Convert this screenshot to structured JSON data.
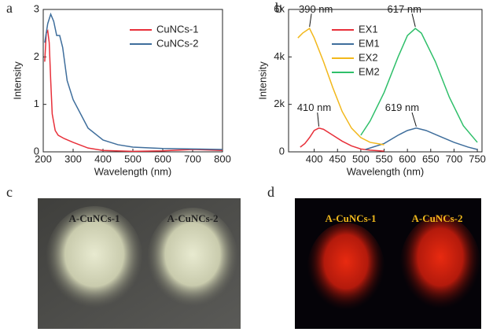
{
  "chart_data": [
    {
      "type": "line",
      "panel": "a",
      "x_label": "Wavelength (nm)",
      "y_label": "Intensity",
      "xlim": [
        200,
        800
      ],
      "xticks": [
        200,
        300,
        400,
        500,
        600,
        700,
        800
      ],
      "ylim": [
        0,
        3
      ],
      "yticks": [
        0,
        1,
        2,
        3
      ],
      "legend": "top-right",
      "series": [
        {
          "name": "CuNCs-1",
          "color": "#e8303a",
          "x": [
            205,
            210,
            215,
            220,
            225,
            230,
            240,
            250,
            270,
            300,
            350,
            400,
            500,
            600,
            700,
            800
          ],
          "values": [
            1.9,
            2.5,
            2.55,
            2.3,
            1.5,
            0.8,
            0.45,
            0.35,
            0.28,
            0.2,
            0.08,
            0.03,
            0.01,
            0.02,
            0.05,
            0.03
          ]
        },
        {
          "name": "CuNCs-2",
          "color": "#3f6e9c",
          "x": [
            205,
            215,
            225,
            235,
            245,
            255,
            265,
            280,
            300,
            350,
            400,
            450,
            500,
            600,
            700,
            800
          ],
          "values": [
            2.3,
            2.7,
            2.9,
            2.75,
            2.45,
            2.45,
            2.2,
            1.5,
            1.1,
            0.5,
            0.25,
            0.15,
            0.1,
            0.07,
            0.06,
            0.05
          ]
        }
      ]
    },
    {
      "type": "line",
      "panel": "b",
      "x_label": "Wavelength (nm)",
      "y_label": "Intensity",
      "xlim": [
        345,
        760
      ],
      "xticks": [
        400,
        450,
        500,
        550,
        600,
        650,
        700,
        750
      ],
      "ylim": [
        0,
        6000
      ],
      "yticks": [
        0,
        {
          "value": 2000,
          "label": "2k"
        },
        {
          "value": 4000,
          "label": "4k"
        },
        {
          "value": 6000,
          "label": "6k"
        }
      ],
      "legend": "top-left",
      "series": [
        {
          "name": "EX1",
          "color": "#e8303a",
          "x": [
            370,
            380,
            390,
            400,
            410,
            420,
            440,
            460,
            480,
            500,
            520,
            550
          ],
          "values": [
            200,
            350,
            600,
            900,
            1000,
            950,
            700,
            450,
            250,
            120,
            70,
            30
          ]
        },
        {
          "name": "EM1",
          "color": "#3f6e9c",
          "x": [
            510,
            550,
            580,
            600,
            619,
            640,
            670,
            700,
            730,
            750
          ],
          "values": [
            100,
            350,
            700,
            900,
            1000,
            900,
            650,
            400,
            200,
            100
          ]
        },
        {
          "name": "EX2",
          "color": "#f2b81c",
          "x": [
            365,
            375,
            390,
            400,
            420,
            440,
            460,
            480,
            500,
            520,
            550
          ],
          "values": [
            4800,
            5000,
            5200,
            4800,
            3800,
            2700,
            1700,
            1000,
            600,
            400,
            300
          ]
        },
        {
          "name": "EM2",
          "color": "#2fbf6a",
          "x": [
            500,
            520,
            550,
            580,
            600,
            617,
            630,
            660,
            690,
            720,
            750
          ],
          "values": [
            700,
            1300,
            2500,
            4000,
            4900,
            5200,
            5000,
            3800,
            2300,
            1100,
            400
          ]
        }
      ],
      "annotations": [
        {
          "text": "390 nm",
          "x": 390,
          "y": 5200
        },
        {
          "text": "617 nm",
          "x": 617,
          "y": 5200
        },
        {
          "text": "410 nm",
          "x": 410,
          "y": 1000
        },
        {
          "text": "619 nm",
          "x": 619,
          "y": 1000
        }
      ]
    }
  ],
  "photos": [
    {
      "panel": "c",
      "labels": [
        "A-CuNCs-1",
        "A-CuNCs-2"
      ]
    },
    {
      "panel": "d",
      "labels": [
        "A-CuNCs-1",
        "A-CuNCs-2"
      ]
    }
  ]
}
